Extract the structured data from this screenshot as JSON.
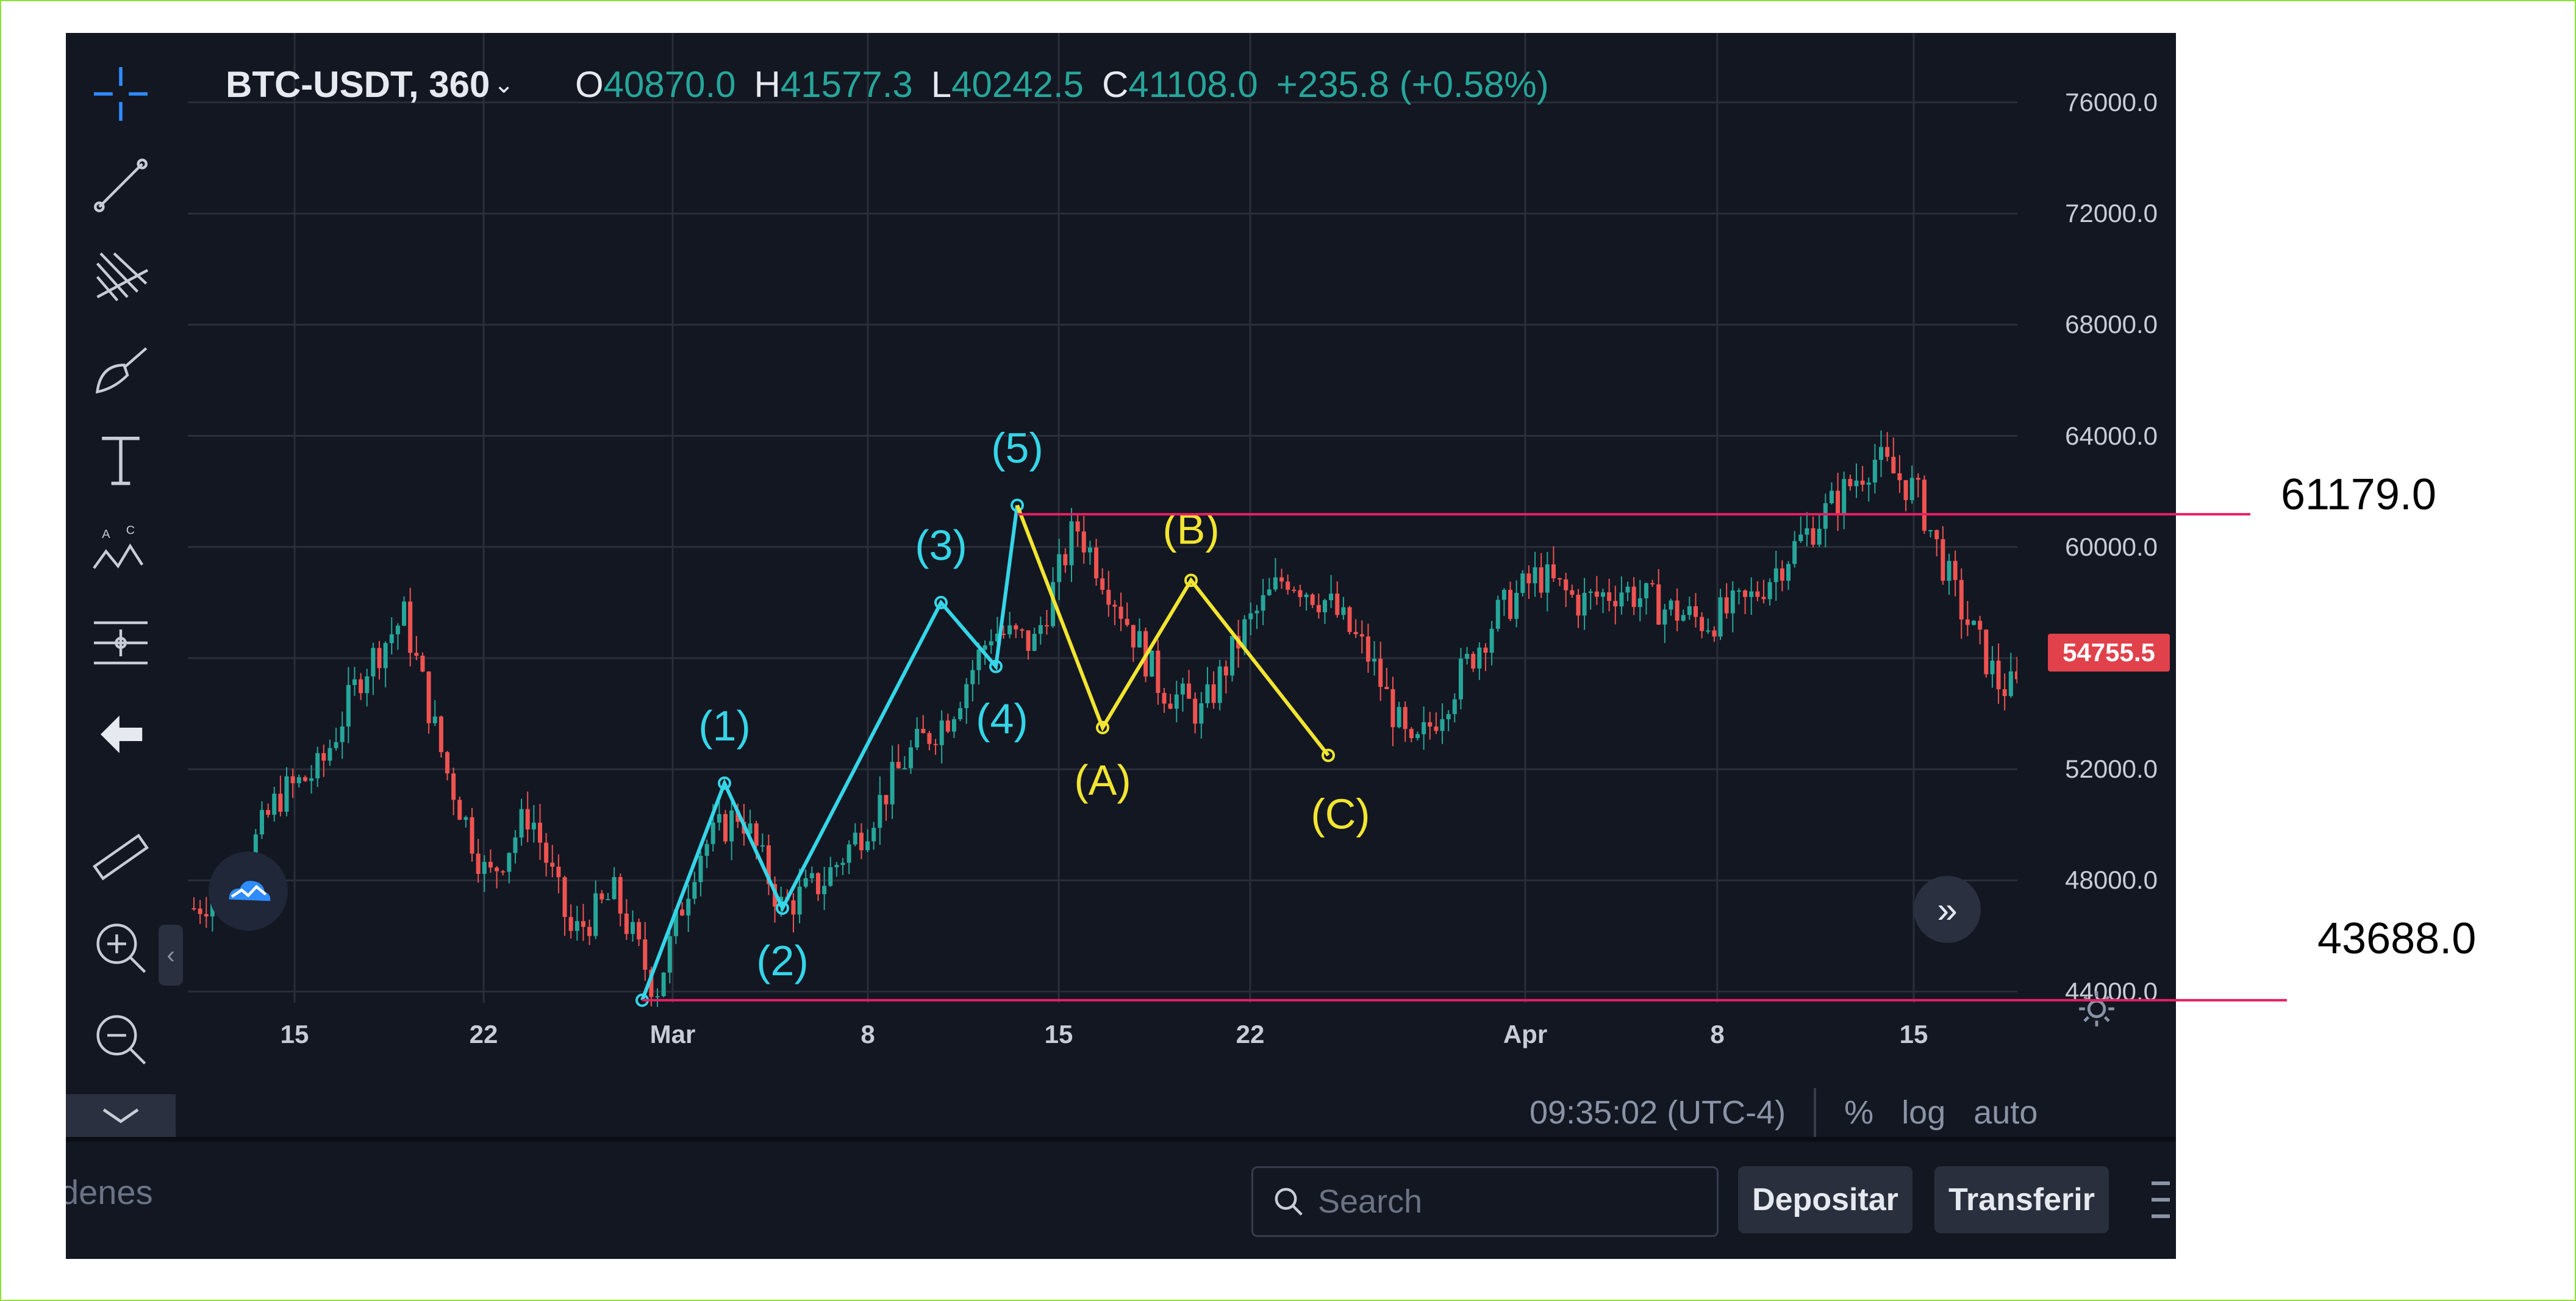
{
  "header": {
    "symbol": "BTC-USDT, 360",
    "open_label": "O",
    "open": "40870.0",
    "high_label": "H",
    "high": "41577.3",
    "low_label": "L",
    "low": "40242.5",
    "close_label": "C",
    "close": "41108.0",
    "change": "+235.8 (+0.58%)"
  },
  "price_axis": [
    "76000.0",
    "72000.0",
    "68000.0",
    "64000.0",
    "60000.0",
    "56000.0",
    "52000.0",
    "48000.0",
    "44000.0"
  ],
  "current_price": "54755.5",
  "time_axis": [
    "15",
    "22",
    "Mar",
    "8",
    "15",
    "22",
    "Apr",
    "8",
    "15"
  ],
  "wave_labels": {
    "impulse": [
      "(1)",
      "(2)",
      "(3)",
      "(4)",
      "(5)"
    ],
    "corrective": [
      "(A)",
      "(B)",
      "(C)"
    ]
  },
  "levels": {
    "upper": "61179.0",
    "lower": "43688.0"
  },
  "bottom": {
    "clock": "09:35:02 (UTC-4)",
    "percent": "%",
    "log": "log",
    "auto": "auto"
  },
  "panel": {
    "tab": "denes",
    "search_placeholder": "Search",
    "deposit": "Depositar",
    "transfer": "Transferir"
  },
  "colors": {
    "bg": "#131722",
    "up": "#26a69a",
    "down": "#ef5350",
    "impulse": "#34d6e8",
    "corrective": "#f2e530",
    "level": "#e91e63"
  },
  "toolbar_icons": [
    "crosshair-icon",
    "trend-line-icon",
    "pitchfork-icon",
    "brush-icon",
    "text-icon",
    "pattern-icon",
    "measure-icon",
    "back-arrow-icon",
    "ruler-icon",
    "zoom-in-icon",
    "zoom-out-icon",
    "chevron-down-icon"
  ],
  "chart_data": {
    "type": "candlestick",
    "series": [
      {
        "name": "BTC-USDT",
        "close": [
          47000,
          48000,
          51000,
          52000,
          55500,
          57500,
          52000,
          48000,
          50500,
          46000,
          47500,
          44000,
          49000,
          50500,
          47000,
          48000,
          50000,
          52500,
          54000,
          57000,
          56500,
          60800,
          58000,
          55000,
          54000,
          57000,
          59000,
          58000,
          56000,
          52500,
          55000,
          57500,
          59000,
          58000,
          58500,
          57800,
          57300,
          58000,
          59800,
          61500,
          63200,
          62000,
          58000,
          55000,
          54755.5
        ]
      }
    ],
    "ylim": [
      42500,
      78500
    ],
    "impulse_waves": [
      {
        "label": "(1)",
        "y": 51500
      },
      {
        "label": "(2)",
        "y": 47000
      },
      {
        "label": "(3)",
        "y": 58000
      },
      {
        "label": "(4)",
        "y": 55700
      },
      {
        "label": "(5)",
        "y": 61500
      }
    ],
    "corrective_waves": [
      {
        "label": "(A)",
        "y": 53500
      },
      {
        "label": "(B)",
        "y": 58800
      },
      {
        "label": "(C)",
        "y": 52500
      }
    ]
  }
}
